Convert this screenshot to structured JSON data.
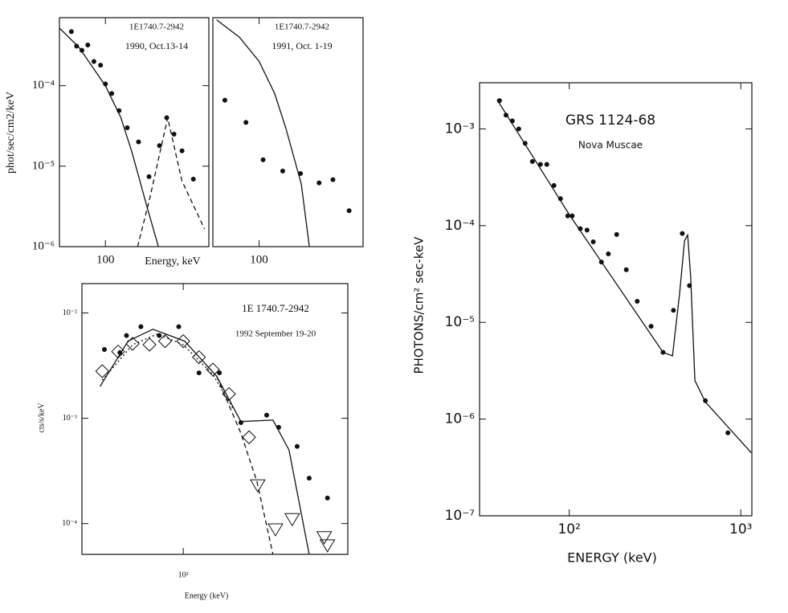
{
  "chart_data": [
    {
      "type": "scatter",
      "xscale": "log",
      "yscale": "log",
      "annotations": [
        "1E1740.7-2942",
        "1990, Oct.13-14"
      ],
      "ylabel": "phot/sec/cm2/keV",
      "xlabel": "Energy, keV",
      "xlim": [
        30,
        1500
      ],
      "ylim": [
        1e-06,
        0.0007
      ],
      "xticks": [
        100
      ],
      "yticks": [
        {
          "value": 0.0001,
          "label": "10⁻⁴"
        },
        {
          "value": 1e-05,
          "label": "10⁻⁵"
        },
        {
          "value": 1e-06,
          "label": "10⁻⁶"
        }
      ],
      "series": [
        {
          "kind": "points",
          "marker": "circle",
          "color": "#111",
          "x": [
            41,
            47,
            54,
            63,
            74,
            88,
            100,
            118,
            143,
            177,
            238,
            313,
            412,
            498,
            603,
            743,
            1000
          ],
          "values": [
            0.00047,
            0.00031,
            0.000275,
            0.00032,
            0.0002,
            0.00018,
            0.000105,
            8e-05,
            4.9e-05,
            3e-05,
            2e-05,
            7.4e-06,
            1.8e-05,
            4e-05,
            2.5e-05,
            1.55e-05,
            6.9e-06
          ]
        },
        {
          "kind": "line",
          "dash": false,
          "color": "#111",
          "x": [
            30,
            50,
            100,
            150,
            200,
            300,
            400
          ],
          "values": [
            0.00052,
            0.0003,
            0.0001,
            4e-05,
            1.5e-05,
            3e-06,
            1e-06
          ]
        },
        {
          "kind": "line",
          "dash": true,
          "color": "#111",
          "x": [
            232,
            320,
            510,
            740,
            1340
          ],
          "values": [
            1e-06,
            4e-06,
            4e-05,
            6.6e-06,
            1.66e-06
          ]
        }
      ]
    },
    {
      "type": "scatter",
      "xscale": "log",
      "yscale": "log",
      "annotations": [
        "1E1740.7-2942",
        "1991, Oct. 1-19"
      ],
      "xlim": [
        30,
        1500
      ],
      "ylim": [
        1e-06,
        0.0007
      ],
      "xticks": [
        100
      ],
      "series": [
        {
          "kind": "points",
          "marker": "circle",
          "color": "#111",
          "x": [
            41,
            71,
            111,
            185,
            294,
            477,
            684,
            1043
          ],
          "values": [
            6.6e-05,
            3.5e-05,
            1.2e-05,
            8.7e-06,
            8.1e-06,
            6.2e-06,
            6.8e-06,
            2.8e-06
          ]
        },
        {
          "kind": "line",
          "dash": false,
          "color": "#111",
          "x": [
            33,
            60,
            100,
            150,
            200,
            300,
            370
          ],
          "values": [
            0.00066,
            0.0004,
            0.0002,
            8e-05,
            3e-05,
            6e-06,
            1e-06
          ]
        }
      ]
    },
    {
      "type": "scatter",
      "xscale": "log",
      "yscale": "log",
      "annotations": [
        "1E 1740.7-2942",
        "1992 September 19-20"
      ],
      "ylabel": "cts/s/keV",
      "xlabel": "Energy  (keV)",
      "xlim": [
        25,
        950
      ],
      "ylim": [
        5.1e-05,
        0.019
      ],
      "xticks": [
        {
          "value": 100,
          "label": "10²"
        }
      ],
      "yticks": [
        {
          "value": 0.01,
          "label": "10⁻²"
        },
        {
          "value": 0.001,
          "label": "10⁻³"
        },
        {
          "value": 0.0001,
          "label": "10⁻⁴"
        }
      ],
      "series": [
        {
          "kind": "points",
          "marker": "circle",
          "color": "#111",
          "x": [
            34,
            42,
            46,
            56,
            72,
            94,
            124,
            164,
            220,
            313,
            369,
            475,
            560,
            719
          ],
          "values": [
            0.0045,
            0.0042,
            0.0061,
            0.0074,
            0.0061,
            0.0074,
            0.0027,
            0.0027,
            0.00091,
            0.00107,
            0.00082,
            0.00054,
            0.00027,
            0.000175
          ]
        },
        {
          "kind": "points",
          "marker": "diamond",
          "color": "#111",
          "x": [
            33,
            41,
            50,
            63,
            78,
            100,
            124,
            150,
            187,
            246
          ],
          "values": [
            0.0028,
            0.0043,
            0.0051,
            0.005,
            0.0054,
            0.0054,
            0.0038,
            0.0029,
            0.0017,
            0.00066
          ]
        },
        {
          "kind": "points",
          "marker": "triangle",
          "color": "#111",
          "x": [
            277,
            353,
            444,
            688,
            719
          ],
          "values": [
            0.00023,
            8.8e-05,
            0.00011,
            7.4e-05,
            6.2e-05
          ]
        },
        {
          "kind": "line",
          "dash": false,
          "color": "#111",
          "x": [
            32,
            47,
            66,
            102,
            158,
            220,
            341,
            425,
            560
          ],
          "values": [
            0.002,
            0.0054,
            0.007,
            0.0054,
            0.0025,
            0.00093,
            0.00096,
            0.0005,
            5.1e-05
          ]
        },
        {
          "kind": "line",
          "dash": true,
          "color": "#111",
          "x": [
            158,
            220,
            274,
            341
          ],
          "values": [
            0.0025,
            0.00072,
            0.00025,
            5.1e-05
          ]
        },
        {
          "kind": "line",
          "dash": "dot",
          "color": "#111",
          "x": [
            33,
            50,
            70,
            100,
            150,
            200
          ],
          "values": [
            0.0023,
            0.005,
            0.0063,
            0.005,
            0.0026,
            0.0012
          ]
        }
      ]
    },
    {
      "type": "scatter",
      "xscale": "log",
      "yscale": "log",
      "annotations": [
        "GRS 1124-68",
        "Nova Muscae"
      ],
      "ylabel": "PHOTONS/cm² sec-keV",
      "xlabel": "ENERGY  (keV)",
      "xlim": [
        30,
        1160
      ],
      "ylim": [
        1e-07,
        0.003
      ],
      "xticks": [
        {
          "value": 100,
          "label": "10²"
        },
        {
          "value": 1000,
          "label": "10³"
        }
      ],
      "yticks": [
        {
          "value": 0.001,
          "label": "10⁻³"
        },
        {
          "value": 0.0001,
          "label": "10⁻⁴"
        },
        {
          "value": 1e-05,
          "label": "10⁻⁵"
        },
        {
          "value": 1e-06,
          "label": "10⁻⁶"
        },
        {
          "value": 1e-07,
          "label": "10⁻⁷"
        }
      ],
      "series": [
        {
          "kind": "points",
          "marker": "circle",
          "color": "#111",
          "x": [
            39.2,
            42.8,
            46.6,
            50.8,
            55.3,
            61,
            67.9,
            74,
            81.5,
            88.9,
            98,
            104,
            116,
            127,
            138,
            154,
            169,
            189,
            215,
            249,
            300,
            352,
            405,
            456,
            502,
            622,
            841
          ],
          "values": [
            0.00196,
            0.00139,
            0.00121,
            0.001,
            0.00071,
            0.00046,
            0.00043,
            0.00043,
            0.00026,
            0.00019,
            0.000126,
            0.000126,
            9.3e-05,
            9e-05,
            6.8e-05,
            4.2e-05,
            5.1e-05,
            8.1e-05,
            3.5e-05,
            1.65e-05,
            9.1e-06,
            4.9e-06,
            1.33e-05,
            8.3e-05,
            2.4e-05,
            1.55e-06,
            7.2e-07
          ]
        },
        {
          "kind": "line",
          "dash": false,
          "color": "#111",
          "x": [
            38,
            100,
            352,
            400,
            440,
            470,
            490,
            510,
            540,
            622,
            1150
          ],
          "values": [
            0.002,
            0.00013,
            4.9e-06,
            4.5e-06,
            2e-05,
            7e-05,
            8e-05,
            3e-05,
            2.5e-06,
            1.5e-06,
            4.5e-07
          ]
        }
      ]
    }
  ]
}
